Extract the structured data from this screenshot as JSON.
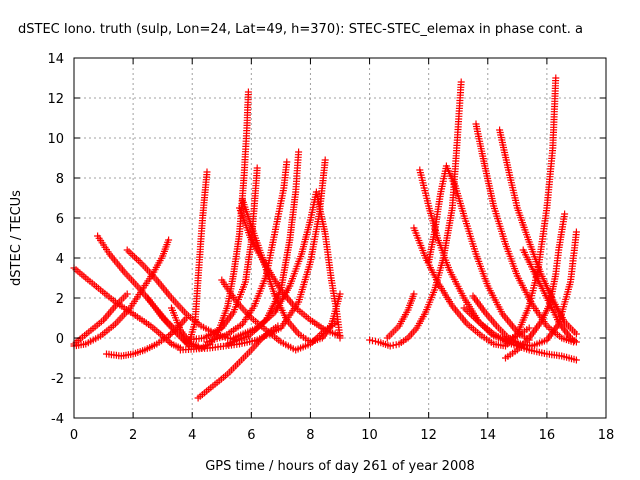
{
  "chart_data": {
    "type": "scatter",
    "title": "dSTEC Iono. truth (sulp, Lon=24, Lat=49, h=370): STEC-STEC_elemax in phase cont. a",
    "xlabel": "GPS time / hours of day 261 of year 2008",
    "ylabel": "dSTEC  / TECUs",
    "xlim": [
      0,
      18
    ],
    "ylim": [
      -4,
      14
    ],
    "x_ticks": [
      "0",
      "2",
      "4",
      "6",
      "8",
      "10",
      "12",
      "14",
      "16",
      "18"
    ],
    "y_ticks": [
      "-4",
      "-2",
      "0",
      "2",
      "4",
      "6",
      "8",
      "10",
      "12",
      "14"
    ],
    "grid": true,
    "marker": "plus",
    "color": "#ff0000",
    "series": [
      {
        "points": [
          [
            0.0,
            3.5
          ],
          [
            0.4,
            3.0
          ],
          [
            0.9,
            2.4
          ],
          [
            1.4,
            1.8
          ],
          [
            2.0,
            1.2
          ],
          [
            2.6,
            0.6
          ],
          [
            3.0,
            0.1
          ],
          [
            3.3,
            -0.3
          ],
          [
            3.6,
            -0.5
          ]
        ]
      },
      {
        "points": [
          [
            0.0,
            -0.3
          ],
          [
            0.5,
            0.3
          ],
          [
            1.0,
            0.9
          ],
          [
            1.4,
            1.6
          ],
          [
            1.8,
            2.2
          ]
        ]
      },
      {
        "points": [
          [
            0.8,
            5.1
          ],
          [
            1.2,
            4.2
          ],
          [
            1.7,
            3.3
          ],
          [
            2.2,
            2.5
          ],
          [
            2.7,
            1.6
          ],
          [
            3.1,
            0.9
          ],
          [
            3.5,
            0.3
          ],
          [
            3.8,
            -0.2
          ],
          [
            4.2,
            -0.4
          ]
        ]
      },
      {
        "points": [
          [
            1.1,
            -0.8
          ],
          [
            1.6,
            -0.9
          ],
          [
            2.0,
            -0.8
          ],
          [
            2.4,
            -0.6
          ],
          [
            2.8,
            -0.3
          ],
          [
            3.2,
            0.1
          ],
          [
            3.5,
            0.5
          ],
          [
            3.8,
            1.0
          ]
        ]
      },
      {
        "points": [
          [
            0.0,
            -0.4
          ],
          [
            0.4,
            -0.3
          ],
          [
            0.9,
            0.1
          ],
          [
            1.4,
            0.7
          ],
          [
            1.9,
            1.5
          ],
          [
            2.3,
            2.4
          ],
          [
            2.7,
            3.3
          ],
          [
            3.0,
            4.1
          ],
          [
            3.2,
            4.9
          ]
        ]
      },
      {
        "points": [
          [
            1.8,
            4.4
          ],
          [
            2.3,
            3.7
          ],
          [
            2.8,
            2.9
          ],
          [
            3.3,
            2.0
          ],
          [
            3.8,
            1.2
          ],
          [
            4.3,
            0.6
          ],
          [
            4.8,
            0.2
          ],
          [
            5.2,
            0.0
          ],
          [
            5.5,
            -0.1
          ]
        ]
      },
      {
        "points": [
          [
            2.5,
            2.0
          ],
          [
            3.0,
            1.0
          ],
          [
            3.5,
            0.2
          ],
          [
            3.9,
            -0.4
          ],
          [
            4.3,
            -0.5
          ],
          [
            4.6,
            -0.3
          ],
          [
            4.9,
            0.4
          ],
          [
            5.2,
            1.6
          ],
          [
            5.4,
            3.2
          ],
          [
            5.6,
            5.2
          ],
          [
            5.75,
            8.0
          ],
          [
            5.85,
            10.5
          ],
          [
            5.9,
            12.3
          ]
        ]
      },
      {
        "points": [
          [
            3.3,
            1.5
          ],
          [
            3.6,
            0.4
          ],
          [
            3.9,
            -0.2
          ],
          [
            4.1,
            0.8
          ],
          [
            4.2,
            3.0
          ],
          [
            4.35,
            6.0
          ],
          [
            4.5,
            8.3
          ]
        ]
      },
      {
        "points": [
          [
            4.2,
            -3.0
          ],
          [
            4.7,
            -2.4
          ],
          [
            5.2,
            -1.8
          ],
          [
            5.6,
            -1.2
          ],
          [
            6.0,
            -0.6
          ],
          [
            6.3,
            -0.1
          ],
          [
            6.6,
            0.3
          ],
          [
            6.9,
            0.6
          ]
        ]
      },
      {
        "points": [
          [
            3.8,
            -0.1
          ],
          [
            4.4,
            0.0
          ],
          [
            5.0,
            0.5
          ],
          [
            5.4,
            1.3
          ],
          [
            5.8,
            2.8
          ],
          [
            6.0,
            4.8
          ],
          [
            6.1,
            6.6
          ],
          [
            6.2,
            8.5
          ]
        ]
      },
      {
        "points": [
          [
            4.5,
            -0.2
          ],
          [
            5.1,
            0.1
          ],
          [
            5.7,
            0.7
          ],
          [
            6.1,
            1.6
          ],
          [
            6.5,
            3.1
          ],
          [
            6.8,
            5.3
          ],
          [
            7.1,
            7.5
          ],
          [
            7.2,
            8.8
          ]
        ]
      },
      {
        "points": [
          [
            5.7,
            6.9
          ],
          [
            6.0,
            5.6
          ],
          [
            6.4,
            3.9
          ],
          [
            6.8,
            2.1
          ],
          [
            7.2,
            0.9
          ],
          [
            7.6,
            0.2
          ],
          [
            8.0,
            -0.2
          ],
          [
            8.4,
            0.0
          ],
          [
            8.7,
            0.6
          ],
          [
            9.0,
            2.2
          ]
        ]
      },
      {
        "points": [
          [
            5.2,
            -0.3
          ],
          [
            5.9,
            0.1
          ],
          [
            6.5,
            0.9
          ],
          [
            7.0,
            2.4
          ],
          [
            7.3,
            4.9
          ],
          [
            7.5,
            7.3
          ],
          [
            7.6,
            9.3
          ]
        ]
      },
      {
        "points": [
          [
            5.0,
            2.9
          ],
          [
            5.5,
            1.8
          ],
          [
            6.0,
            1.0
          ],
          [
            6.5,
            0.4
          ],
          [
            7.0,
            -0.2
          ],
          [
            7.5,
            -0.6
          ],
          [
            8.0,
            -0.3
          ],
          [
            8.5,
            0.4
          ],
          [
            8.9,
            0.8
          ]
        ]
      },
      {
        "points": [
          [
            5.6,
            6.5
          ],
          [
            6.0,
            4.9
          ],
          [
            6.5,
            3.6
          ],
          [
            7.0,
            2.4
          ],
          [
            7.5,
            1.5
          ],
          [
            8.0,
            0.9
          ],
          [
            8.5,
            0.4
          ],
          [
            9.0,
            0.1
          ]
        ]
      },
      {
        "points": [
          [
            3.6,
            -0.6
          ],
          [
            4.6,
            -0.5
          ],
          [
            5.6,
            -0.3
          ],
          [
            6.2,
            -0.1
          ],
          [
            7.0,
            0.5
          ],
          [
            7.6,
            1.8
          ],
          [
            8.0,
            3.8
          ],
          [
            8.3,
            6.2
          ],
          [
            8.5,
            8.9
          ]
        ]
      },
      {
        "points": [
          [
            5.4,
            0.0
          ],
          [
            6.2,
            0.5
          ],
          [
            6.8,
            1.3
          ],
          [
            7.3,
            2.6
          ],
          [
            7.7,
            4.2
          ],
          [
            8.0,
            5.9
          ],
          [
            8.2,
            7.3
          ],
          [
            8.5,
            5.2
          ],
          [
            8.7,
            3.0
          ],
          [
            8.9,
            1.2
          ],
          [
            9.0,
            0.0
          ]
        ]
      },
      {
        "points": [
          [
            10.0,
            -0.1
          ],
          [
            10.3,
            -0.2
          ],
          [
            10.7,
            -0.4
          ],
          [
            11.0,
            -0.3
          ],
          [
            11.3,
            0.0
          ],
          [
            11.6,
            0.5
          ],
          [
            11.9,
            1.3
          ],
          [
            12.2,
            2.4
          ],
          [
            12.5,
            4.0
          ],
          [
            12.8,
            6.5
          ],
          [
            12.95,
            9.5
          ],
          [
            13.1,
            12.8
          ]
        ]
      },
      {
        "points": [
          [
            10.6,
            0.0
          ],
          [
            11.0,
            0.6
          ],
          [
            11.3,
            1.4
          ],
          [
            11.5,
            2.2
          ]
        ]
      },
      {
        "points": [
          [
            11.5,
            5.5
          ],
          [
            11.9,
            4.0
          ],
          [
            12.3,
            2.8
          ],
          [
            12.8,
            1.6
          ],
          [
            13.3,
            0.7
          ],
          [
            13.8,
            0.1
          ],
          [
            14.2,
            -0.3
          ],
          [
            14.6,
            -0.4
          ],
          [
            15.0,
            0.2
          ],
          [
            15.4,
            1.6
          ],
          [
            15.7,
            3.4
          ],
          [
            16.0,
            6.5
          ],
          [
            16.2,
            9.5
          ],
          [
            16.3,
            13.0
          ]
        ]
      },
      {
        "points": [
          [
            11.7,
            8.4
          ],
          [
            12.0,
            6.6
          ],
          [
            12.3,
            5.0
          ],
          [
            12.7,
            3.4
          ],
          [
            13.2,
            2.0
          ],
          [
            13.7,
            0.8
          ],
          [
            14.2,
            0.1
          ],
          [
            14.6,
            -0.1
          ],
          [
            15.0,
            0.1
          ],
          [
            15.4,
            0.5
          ]
        ]
      },
      {
        "points": [
          [
            12.0,
            3.8
          ],
          [
            12.2,
            5.3
          ],
          [
            12.4,
            7.2
          ],
          [
            12.6,
            8.6
          ],
          [
            12.9,
            7.6
          ],
          [
            13.2,
            6.1
          ],
          [
            13.6,
            4.2
          ],
          [
            14.0,
            2.6
          ],
          [
            14.5,
            1.2
          ],
          [
            15.0,
            0.3
          ],
          [
            15.4,
            -0.1
          ]
        ]
      },
      {
        "points": [
          [
            13.6,
            10.7
          ],
          [
            13.9,
            8.6
          ],
          [
            14.2,
            6.6
          ],
          [
            14.6,
            4.7
          ],
          [
            15.0,
            3.1
          ],
          [
            15.5,
            1.7
          ],
          [
            16.0,
            0.6
          ],
          [
            16.5,
            0.0
          ],
          [
            16.9,
            -0.2
          ]
        ]
      },
      {
        "points": [
          [
            14.4,
            10.4
          ],
          [
            14.7,
            8.4
          ],
          [
            15.0,
            6.5
          ],
          [
            15.4,
            4.8
          ],
          [
            15.8,
            3.2
          ],
          [
            16.2,
            1.9
          ],
          [
            16.6,
            0.8
          ],
          [
            17.0,
            0.2
          ]
        ]
      },
      {
        "points": [
          [
            13.5,
            2.1
          ],
          [
            13.9,
            1.3
          ],
          [
            14.3,
            0.6
          ],
          [
            14.7,
            0.0
          ],
          [
            15.1,
            -0.3
          ],
          [
            15.5,
            -0.4
          ],
          [
            16.0,
            -0.1
          ],
          [
            16.4,
            0.7
          ],
          [
            16.8,
            2.8
          ],
          [
            17.0,
            5.3
          ]
        ]
      },
      {
        "points": [
          [
            14.6,
            -1.0
          ],
          [
            15.0,
            -0.6
          ],
          [
            15.4,
            0.0
          ],
          [
            15.8,
            0.8
          ],
          [
            16.1,
            1.7
          ],
          [
            16.3,
            3.2
          ],
          [
            16.4,
            4.4
          ],
          [
            16.6,
            6.2
          ]
        ]
      },
      {
        "points": [
          [
            15.2,
            4.4
          ],
          [
            15.6,
            3.2
          ],
          [
            16.0,
            2.0
          ],
          [
            16.4,
            0.8
          ],
          [
            16.8,
            0.0
          ],
          [
            17.0,
            -0.2
          ]
        ]
      },
      {
        "points": [
          [
            13.2,
            1.5
          ],
          [
            13.7,
            0.8
          ],
          [
            14.2,
            0.2
          ],
          [
            14.8,
            -0.3
          ],
          [
            15.4,
            -0.6
          ],
          [
            16.0,
            -0.8
          ],
          [
            16.5,
            -0.9
          ],
          [
            17.0,
            -1.1
          ]
        ]
      }
    ]
  }
}
